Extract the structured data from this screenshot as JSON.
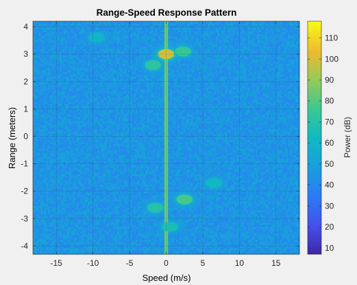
{
  "chart_data": {
    "type": "heatmap",
    "title": "Range-Speed Response Pattern",
    "xlabel": "Speed (m/s)",
    "ylabel": "Range (meters)",
    "xlim": [
      -18.2,
      18.2
    ],
    "ylim": [
      -4.3,
      4.2
    ],
    "xticks": [
      -15,
      -10,
      -5,
      0,
      5,
      10,
      15
    ],
    "yticks": [
      -4,
      -3,
      -2,
      -1,
      0,
      1,
      2,
      3,
      4
    ],
    "grid": true,
    "colormap": "parula",
    "colorbar": {
      "label": "Power (dB)",
      "ticks": [
        10,
        20,
        30,
        40,
        50,
        60,
        70,
        80,
        90,
        100,
        110
      ],
      "range": [
        7,
        118
      ],
      "placement": "right"
    },
    "background_power_db": 45,
    "zero_speed_line": {
      "speed": 0,
      "power_db": 85
    },
    "peaks": [
      {
        "speed": 0,
        "range": 3.0,
        "power_db": 100
      },
      {
        "speed": 2.3,
        "range": 3.1,
        "power_db": 75
      },
      {
        "speed": -1.8,
        "range": 2.6,
        "power_db": 72
      },
      {
        "speed": 2.5,
        "range": -2.3,
        "power_db": 78
      },
      {
        "speed": -1.5,
        "range": -2.6,
        "power_db": 70
      },
      {
        "speed": 6.5,
        "range": -1.7,
        "power_db": 62
      },
      {
        "speed": -9.5,
        "range": 3.6,
        "power_db": 60
      },
      {
        "speed": 0.5,
        "range": -3.3,
        "power_db": 66
      }
    ]
  }
}
